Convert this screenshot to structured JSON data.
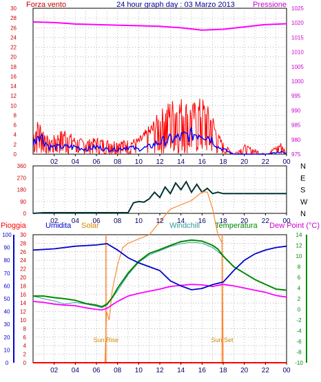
{
  "chart_data": [
    {
      "type": "line",
      "title": "24 hour graph day : 03 Marzo 2013",
      "left_title": "Forza vento",
      "right_title": "Pressione",
      "x_ticks": [
        "02",
        "04",
        "06",
        "08",
        "10",
        "12",
        "14",
        "16",
        "18",
        "20",
        "22",
        "00"
      ],
      "x_range": [
        0,
        24
      ],
      "left_axis": {
        "range": [
          0,
          30
        ],
        "ticks": [
          "0",
          "2",
          "4",
          "6",
          "8",
          "10",
          "12",
          "14",
          "16",
          "18",
          "20",
          "22",
          "24",
          "26",
          "28",
          "30"
        ]
      },
      "right_axis": {
        "range": [
          975,
          1025
        ],
        "ticks": [
          "975",
          "980",
          "985",
          "990",
          "995",
          "1000",
          "1005",
          "1010",
          "1015",
          "1020",
          "1025"
        ]
      },
      "grid": true,
      "colors": {
        "wind": "#ff0000",
        "gust": "#0000ff",
        "pressure": "#ff00ff",
        "axis_left": "#cc0000",
        "axis_right": "#cc00cc"
      },
      "series": [
        {
          "key": "pressure",
          "x": [
            0,
            2,
            4,
            6,
            8,
            10,
            12,
            14,
            16,
            18,
            20,
            22,
            24
          ],
          "values": [
            1020.3,
            1020.1,
            1019.6,
            1019.4,
            1019.2,
            1019.0,
            1018.8,
            1018.3,
            1017.5,
            1017.8,
            1018.6,
            1019.4,
            1019.7
          ]
        },
        {
          "key": "gust",
          "x": [
            0,
            0.5,
            1,
            1.5,
            2,
            3,
            4,
            5,
            6,
            7,
            8,
            9,
            10,
            11,
            12,
            13,
            14,
            15,
            16,
            17,
            17.5,
            18,
            19,
            20,
            22,
            23.5,
            24
          ],
          "values": [
            2,
            4.5,
            3,
            1.5,
            1.5,
            1.5,
            1.5,
            1,
            1.5,
            1,
            1,
            1.5,
            1,
            1.5,
            2.5,
            3,
            3.5,
            4,
            4.5,
            3,
            1.5,
            1,
            0,
            0,
            0,
            0.5,
            0
          ]
        },
        {
          "key": "wind_peaks",
          "x": [
            0,
            0.5,
            1,
            1.5,
            2,
            3,
            4,
            5,
            6,
            7,
            8,
            9,
            10,
            11,
            12,
            13,
            14,
            15,
            16,
            17,
            17.5,
            18,
            19,
            20,
            22,
            23.5,
            24
          ],
          "values": [
            5,
            7.5,
            5.5,
            3,
            4,
            5.5,
            3.5,
            3,
            3.5,
            3,
            3,
            3,
            3.5,
            6,
            9,
            11.5,
            12,
            10.5,
            12,
            8.5,
            4.5,
            2.5,
            0,
            2,
            0,
            2.5,
            0
          ]
        }
      ]
    },
    {
      "type": "line",
      "y_range": [
        0,
        360
      ],
      "y_ticks": [
        "0",
        "90",
        "180",
        "270",
        "360"
      ],
      "right_labels": [
        "N",
        "W",
        "S",
        "E",
        "N"
      ],
      "x_ticks": [
        "02",
        "04",
        "06",
        "08",
        "10",
        "12",
        "14",
        "16",
        "18",
        "20",
        "22",
        "00"
      ],
      "grid": true,
      "colors": {
        "direction": "#003333",
        "axis_left": "#cc0000"
      },
      "series": [
        {
          "key": "direction",
          "x": [
            0,
            1,
            2,
            3,
            4,
            5,
            6,
            7,
            8,
            9,
            9.5,
            10,
            10.5,
            11,
            11.5,
            12,
            12.5,
            13,
            13.5,
            14,
            14.5,
            15,
            15.5,
            16,
            16.5,
            17,
            17.5,
            18,
            19,
            20,
            21,
            22,
            23,
            24
          ],
          "values": [
            0,
            5,
            5,
            5,
            5,
            5,
            5,
            5,
            5,
            5,
            80,
            90,
            85,
            110,
            160,
            120,
            200,
            150,
            230,
            180,
            240,
            160,
            220,
            160,
            190,
            150,
            160,
            150,
            150,
            150,
            150,
            150,
            150,
            150
          ]
        }
      ]
    },
    {
      "type": "line",
      "labels": {
        "rain": "Pioggia",
        "humidity": "Umidita",
        "solar": "Solar",
        "windchill": "Windchill",
        "temperature": "Temperatura",
        "dewpoint": "Dew Point (°C)"
      },
      "x_ticks": [
        "02",
        "04",
        "06",
        "08",
        "10",
        "12",
        "14",
        "16",
        "18",
        "20",
        "22",
        "00"
      ],
      "rain_axis": {
        "ticks": [
          "0",
          "2",
          "4",
          "6",
          "8",
          "10",
          "12",
          "14",
          "16",
          "18",
          "20",
          "22",
          "24",
          "26",
          "28",
          "30"
        ]
      },
      "humidity_axis": {
        "range": [
          0,
          100
        ],
        "ticks": [
          "0",
          "10",
          "20",
          "30",
          "40",
          "50",
          "60",
          "70",
          "80",
          "90",
          "100"
        ]
      },
      "temp_axis": {
        "range": [
          -10,
          14
        ],
        "ticks": [
          "-10",
          "-8",
          "-6",
          "-4",
          "-2",
          "0",
          "2",
          "4",
          "6",
          "8",
          "10",
          "12",
          "14"
        ]
      },
      "annotations": [
        {
          "label": "Sun Rise",
          "x": 6.9
        },
        {
          "label": "Sun Set",
          "x": 17.9
        }
      ],
      "grid": true,
      "colors": {
        "rain": "#ff0000",
        "humidity": "#0000cc",
        "solar": "#ff8833",
        "windchill": "#339999",
        "temperature": "#008800",
        "dewpoint": "#ff00ff"
      },
      "series": [
        {
          "key": "humidity",
          "x": [
            0,
            2,
            4,
            6,
            7,
            8,
            9,
            10,
            11,
            12,
            13,
            14,
            15,
            16,
            17,
            18,
            19,
            20,
            21,
            22,
            23,
            24
          ],
          "values": [
            88,
            89,
            91,
            92,
            93,
            88,
            82,
            78,
            75,
            72,
            64,
            60,
            57,
            58,
            61,
            63,
            72,
            80,
            85,
            88,
            90,
            91
          ]
        },
        {
          "key": "temperature",
          "x": [
            0,
            1,
            2,
            3,
            4,
            5,
            6,
            6.5,
            7,
            7.5,
            8,
            9,
            10,
            11,
            12,
            13,
            14,
            15,
            16,
            17,
            17.5,
            18,
            19,
            20,
            21,
            22,
            23,
            24
          ],
          "values": [
            2.5,
            2.5,
            2.2,
            2.0,
            1.7,
            1.1,
            0.8,
            0.5,
            1.0,
            2.2,
            4.0,
            6.8,
            9.0,
            10.5,
            11.2,
            12.0,
            12.7,
            13.0,
            12.8,
            12.0,
            11.3,
            10.0,
            8.0,
            6.8,
            5.6,
            4.7,
            3.8,
            3.6
          ]
        },
        {
          "key": "windchill",
          "x": [
            0,
            1,
            2,
            3,
            4,
            5,
            6,
            6.5,
            7,
            8,
            9,
            10,
            11,
            12,
            13,
            14,
            15,
            16,
            17,
            18,
            19,
            20,
            21,
            22,
            23,
            24
          ],
          "values": [
            2.5,
            2.0,
            1.6,
            1.0,
            1.3,
            1.0,
            0.6,
            0.3,
            0.8,
            3.5,
            6.5,
            8.8,
            10.2,
            11.0,
            11.8,
            12.3,
            12.6,
            12.4,
            11.6,
            10.0,
            8.0,
            6.8,
            5.6,
            4.7,
            3.8,
            3.6
          ]
        },
        {
          "key": "dewpoint",
          "x": [
            0,
            1,
            2,
            3,
            4,
            5,
            6,
            6.5,
            7,
            8,
            9,
            10,
            11,
            12,
            13,
            14,
            15,
            16,
            17,
            18,
            19,
            20,
            21,
            22,
            23,
            24
          ],
          "values": [
            1.5,
            1.3,
            1.0,
            0.8,
            0.7,
            0.3,
            0.0,
            -0.1,
            0.2,
            1.5,
            2.5,
            3.0,
            3.4,
            3.8,
            4.3,
            4.5,
            4.7,
            4.6,
            4.3,
            4.7,
            4.4,
            4.0,
            3.6,
            3.2,
            2.6,
            2.3
          ]
        },
        {
          "key": "solar",
          "x": [
            0,
            6.8,
            6.95,
            7.2,
            7.5,
            8,
            8.5,
            9,
            10,
            11,
            12,
            13,
            14,
            15,
            16,
            16.5,
            17,
            17.5,
            17.9,
            18,
            24
          ],
          "values": [
            0,
            0,
            12,
            10,
            17,
            23,
            27,
            28,
            29,
            30,
            33,
            36,
            37,
            38,
            40,
            40,
            36,
            30,
            28,
            0,
            0
          ]
        }
      ]
    }
  ]
}
